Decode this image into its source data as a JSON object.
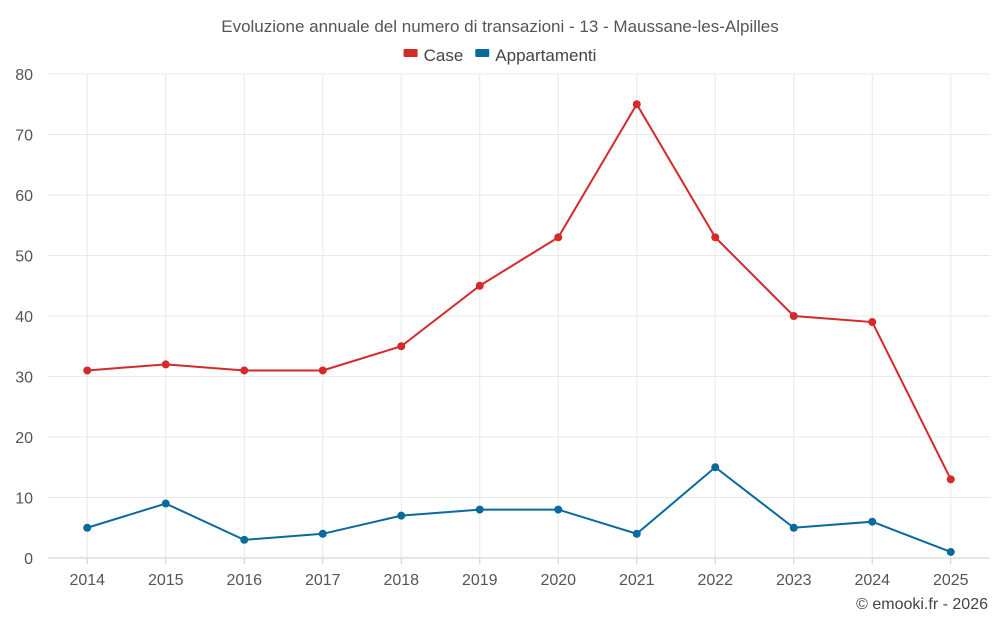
{
  "chart_data": {
    "type": "line",
    "title": "Evoluzione annuale del numero di transazioni - 13 - Maussane-les-Alpilles",
    "categories": [
      "2014",
      "2015",
      "2016",
      "2017",
      "2018",
      "2019",
      "2020",
      "2021",
      "2022",
      "2023",
      "2024",
      "2025"
    ],
    "series": [
      {
        "name": "Case",
        "color": "#d42a2a",
        "values": [
          31,
          32,
          31,
          31,
          35,
          45,
          53,
          75,
          53,
          40,
          39,
          13
        ]
      },
      {
        "name": "Appartamenti",
        "color": "#0a6a9e",
        "values": [
          5,
          9,
          3,
          4,
          7,
          8,
          8,
          4,
          15,
          5,
          6,
          1
        ]
      }
    ],
    "ylim": [
      0,
      80
    ],
    "yticks": [
      0,
      10,
      20,
      30,
      40,
      50,
      60,
      70,
      80
    ],
    "grid": true,
    "legend_position": "top-center",
    "xlabel": "",
    "ylabel": ""
  },
  "credit": "© emooki.fr - 2026"
}
